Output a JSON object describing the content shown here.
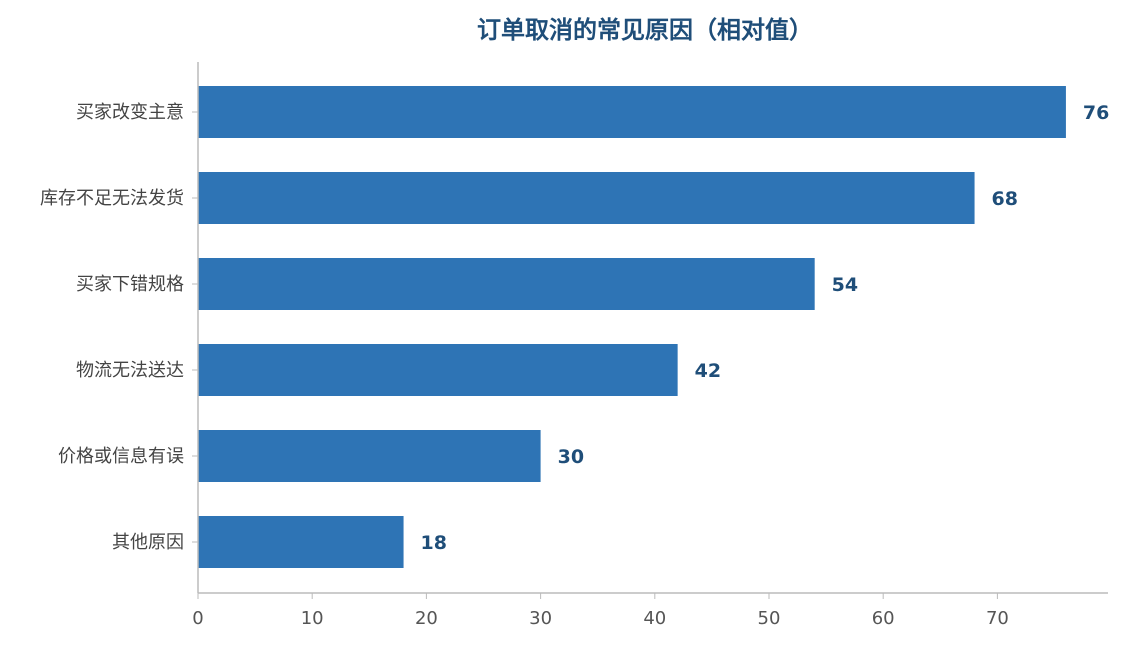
{
  "chart_data": {
    "type": "bar",
    "orientation": "horizontal",
    "title": "订单取消的常见原因（相对值）",
    "xlabel": "",
    "ylabel": "",
    "categories": [
      "买家改变主意",
      "库存不足无法发货",
      "买家下错规格",
      "物流无法送达",
      "价格或信息有误",
      "其他原因"
    ],
    "values": [
      76,
      68,
      54,
      42,
      30,
      18
    ],
    "xlim": [
      0,
      80
    ],
    "xticks": [
      0,
      10,
      20,
      30,
      40,
      50,
      60,
      70
    ],
    "grid": false,
    "legend": "none",
    "data_labels": true
  },
  "colors": {
    "bar": "#2E74B5",
    "title": "#1F4E79",
    "data_label": "#1F4E79",
    "axis": "#BBBBBB"
  }
}
